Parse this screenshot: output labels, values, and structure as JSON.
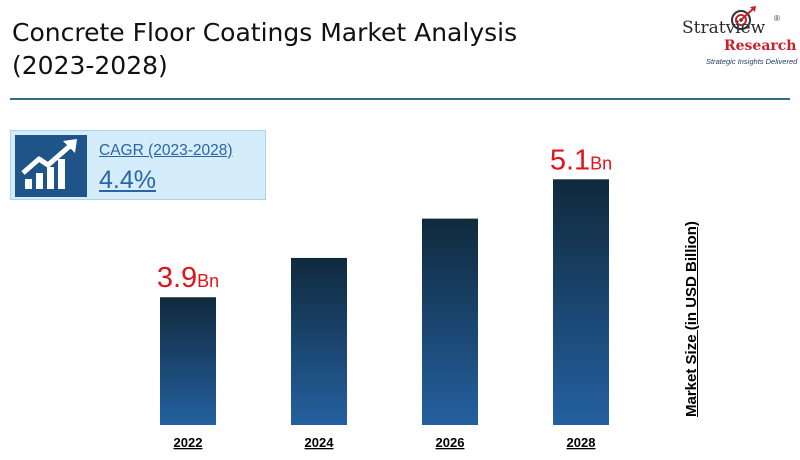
{
  "title_line1": "Concrete Floor Coatings Market Analysis",
  "title_line2": "(2023-2028)",
  "logo": {
    "brand": "Stratview",
    "registered": "®",
    "research": "Research",
    "tagline": "Strategic Insights Delivered",
    "icon": "target-arrow-icon"
  },
  "cagr": {
    "label": "CAGR (2023-2028)",
    "value": "4.4%",
    "icon": "growth-chart-arrow-icon"
  },
  "colors": {
    "bar_top": "#10293c",
    "bar_bottom": "#2461a0",
    "value_label": "#e0141b",
    "divider": "#2e6e80",
    "cagr_bg": "#d5ecfa"
  },
  "chart_data": {
    "type": "bar",
    "categories": [
      "2022",
      "2024",
      "2026",
      "2028"
    ],
    "values": [
      3.9,
      4.3,
      4.7,
      5.1
    ],
    "data_labels": [
      {
        "index": 0,
        "number": "3.9",
        "unit": "Bn"
      },
      {
        "index": 3,
        "number": "5.1",
        "unit": "Bn"
      }
    ],
    "ylabel": "Market Size (in USD Billion)",
    "xlabel": "",
    "ylim": [
      2.6,
      5.5
    ],
    "grid": false,
    "legend": "none"
  }
}
